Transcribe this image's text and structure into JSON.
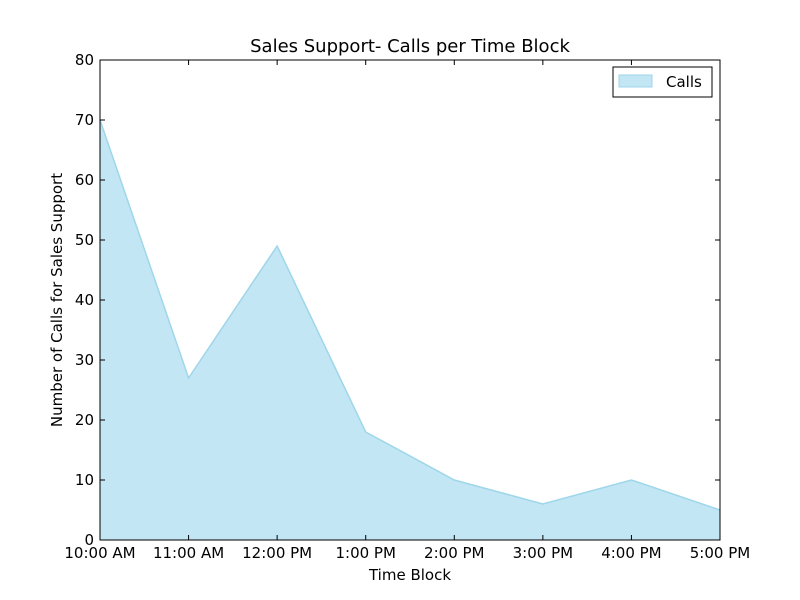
{
  "chart_data": {
    "type": "area",
    "title": "Sales Support- Calls per Time Block",
    "xlabel": "Time Block",
    "ylabel": "Number of Calls for Sales Support",
    "categories": [
      "10:00 AM",
      "11:00 AM",
      "12:00 PM",
      "1:00 PM",
      "2:00 PM",
      "3:00 PM",
      "4:00 PM",
      "5:00 PM"
    ],
    "series": [
      {
        "name": "Calls",
        "values": [
          70,
          27,
          49,
          18,
          10,
          6,
          10,
          5
        ],
        "fill_color": "#c2e6f4",
        "line_color": "#9fd6ea"
      }
    ],
    "ylim": [
      0,
      80
    ],
    "yticks": [
      0,
      10,
      20,
      30,
      40,
      50,
      60,
      70,
      80
    ],
    "grid": false,
    "legend_position": "top-right"
  }
}
